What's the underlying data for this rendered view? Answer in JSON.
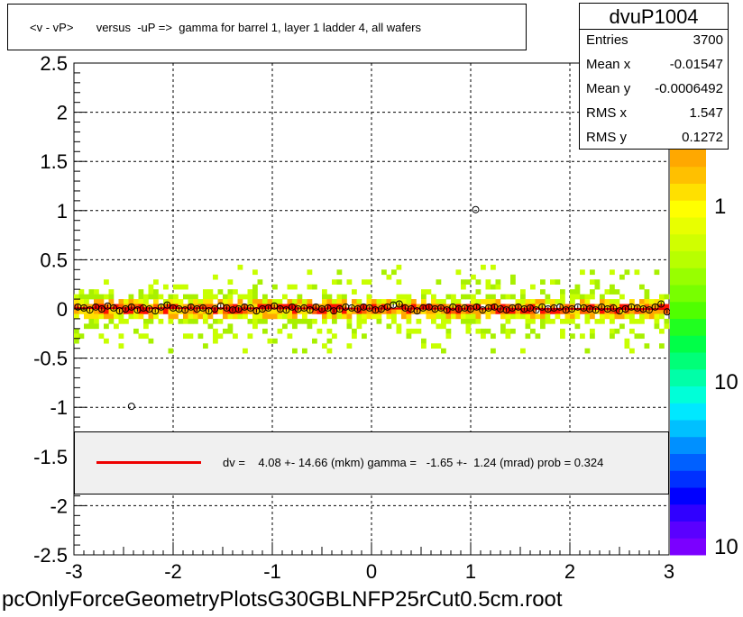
{
  "title": "<v - vP>       versus  -uP =>  gamma for barrel 1, layer 1 ladder 4, all wafers",
  "stats": {
    "name": "dvuP1004",
    "rows": [
      {
        "key": "Entries",
        "value": "3700"
      },
      {
        "key": "Mean x",
        "value": "-0.01547"
      },
      {
        "key": "Mean y",
        "value": "-0.0006492"
      },
      {
        "key": "RMS x",
        "value": "1.547"
      },
      {
        "key": "RMS y",
        "value": "0.1272"
      }
    ]
  },
  "fit": {
    "text": "dv =    4.08 +- 14.66 (mkm) gamma =   -1.65 +-  1.24 (mrad) prob = 0.324",
    "color": "#ee0000"
  },
  "file_label": "pcOnlyForceGeometryPlotsG30GBLNFP25rCut0.5cm.root",
  "colorbar": {
    "labels": [
      "1",
      "10",
      "10"
    ],
    "colors": [
      "#7b00ff",
      "#5a00ff",
      "#3000ff",
      "#0000ff",
      "#0030ff",
      "#0060ff",
      "#0090ff",
      "#00c0ff",
      "#00e8ff",
      "#00ffd8",
      "#00ffa8",
      "#00ff78",
      "#00ff48",
      "#20ff20",
      "#50ff00",
      "#78ff00",
      "#98ff00",
      "#b8ff00",
      "#d0ff00",
      "#e8ff00",
      "#ffff00",
      "#ffe000",
      "#ffc000",
      "#ffa800"
    ]
  },
  "chart_data": {
    "type": "scatter",
    "xlim": [
      -3,
      3
    ],
    "ylim": [
      -2.5,
      2.5
    ],
    "x_ticks": [
      "-3",
      "-2",
      "-1",
      "0",
      "1",
      "2",
      "3"
    ],
    "y_ticks": [
      "2.5",
      "2",
      "1.5",
      "1",
      "0.5",
      "0",
      "-0.5",
      "-1",
      "-1.5",
      "-2",
      "-2.5"
    ],
    "grid": true,
    "profile_x": [
      -2.96,
      -2.9,
      -2.84,
      -2.78,
      -2.72,
      -2.66,
      -2.6,
      -2.54,
      -2.48,
      -2.42,
      -2.36,
      -2.3,
      -2.24,
      -2.18,
      -2.12,
      -2.06,
      -2.0,
      -1.94,
      -1.88,
      -1.82,
      -1.76,
      -1.7,
      -1.64,
      -1.58,
      -1.52,
      -1.46,
      -1.4,
      -1.34,
      -1.28,
      -1.22,
      -1.16,
      -1.1,
      -1.04,
      -0.98,
      -0.92,
      -0.86,
      -0.8,
      -0.74,
      -0.68,
      -0.62,
      -0.56,
      -0.5,
      -0.44,
      -0.38,
      -0.32,
      -0.26,
      -0.2,
      -0.14,
      -0.08,
      -0.02,
      0.04,
      0.1,
      0.16,
      0.22,
      0.28,
      0.34,
      0.4,
      0.46,
      0.52,
      0.58,
      0.64,
      0.7,
      0.76,
      0.82,
      0.88,
      0.94,
      1.0,
      1.06,
      1.12,
      1.18,
      1.24,
      1.3,
      1.36,
      1.42,
      1.48,
      1.54,
      1.6,
      1.66,
      1.72,
      1.78,
      1.84,
      1.9,
      1.96,
      2.02,
      2.08,
      2.14,
      2.2,
      2.26,
      2.32,
      2.38,
      2.44,
      2.5,
      2.56,
      2.62,
      2.68,
      2.74,
      2.8,
      2.86,
      2.92,
      2.98
    ],
    "profile_y": [
      0.02,
      0.01,
      -0.01,
      0.02,
      0.0,
      0.03,
      0.01,
      -0.02,
      0.0,
      0.02,
      -0.01,
      0.01,
      0.0,
      -0.02,
      0.02,
      0.04,
      0.01,
      0.0,
      -0.01,
      0.02,
      0.0,
      0.01,
      -0.02,
      0.0,
      0.03,
      0.01,
      -0.01,
      0.0,
      0.02,
      0.01,
      -0.02,
      0.0,
      0.01,
      0.03,
      0.0,
      -0.01,
      0.02,
      0.0,
      0.01,
      -0.01,
      0.02,
      0.0,
      0.01,
      -0.02,
      0.0,
      0.02,
      0.01,
      0.0,
      0.02,
      0.01,
      -0.01,
      0.0,
      0.02,
      0.04,
      0.05,
      0.01,
      0.0,
      -0.02,
      0.01,
      0.02,
      0.0,
      0.01,
      -0.01,
      0.02,
      0.0,
      0.01,
      0.0,
      0.02,
      -0.01,
      0.01,
      0.02,
      0.0,
      -0.01,
      0.01,
      0.02,
      0.0,
      0.01,
      -0.01,
      0.02,
      0.0,
      0.01,
      0.02,
      -0.01,
      0.0,
      0.02,
      0.01,
      0.0,
      -0.01,
      0.02,
      0.0,
      0.01,
      -0.02,
      0.0,
      0.02,
      0.01,
      0.0,
      -0.01,
      0.02,
      0.05,
      -0.03
    ],
    "outliers": [
      {
        "x": 1.05,
        "y": 1.01
      },
      {
        "x": -2.42,
        "y": -0.99
      }
    ],
    "fit_line": {
      "y0": 0.004,
      "slope": -0.00165
    }
  }
}
